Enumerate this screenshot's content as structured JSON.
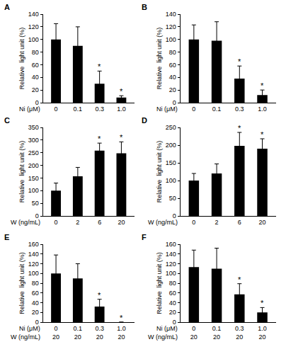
{
  "chart_data": [
    {
      "type": "bar",
      "panel": "A",
      "y_label": "Relative  light unit (%)",
      "x_label": "Ni (μM)",
      "categories": [
        "0",
        "0.1",
        "0.3",
        "1.0"
      ],
      "values": [
        100,
        90,
        30,
        8
      ],
      "errors": [
        25,
        30,
        20,
        3
      ],
      "color": "#000000",
      "ylim": [
        0,
        140
      ],
      "yticks": [
        0,
        20,
        40,
        60,
        80,
        100,
        120,
        140
      ],
      "annotations": [
        {
          "index": 2,
          "text": "*"
        },
        {
          "index": 3,
          "text": "*"
        }
      ]
    },
    {
      "type": "bar",
      "panel": "B",
      "y_label": "Relative  light unit (%)",
      "x_label": "Ni (μM)",
      "categories": [
        "0",
        "0.1",
        "0.3",
        "1.0"
      ],
      "values": [
        100,
        98,
        38,
        12
      ],
      "errors": [
        23,
        30,
        20,
        8
      ],
      "color": "#000000",
      "ylim": [
        0,
        140
      ],
      "yticks": [
        0,
        20,
        40,
        60,
        80,
        100,
        120,
        140
      ],
      "annotations": [
        {
          "index": 2,
          "text": "*"
        },
        {
          "index": 3,
          "text": "*"
        }
      ]
    },
    {
      "type": "bar",
      "panel": "C",
      "y_label": "Relative  light unit (%)",
      "x_label": "W (ng/mL)",
      "categories": [
        "0",
        "2",
        "6",
        "20"
      ],
      "values": [
        100,
        157,
        258,
        248
      ],
      "errors": [
        30,
        35,
        30,
        45
      ],
      "color": "#000000",
      "ylim": [
        0,
        350
      ],
      "yticks": [
        0,
        50,
        100,
        150,
        200,
        250,
        300,
        350
      ],
      "annotations": [
        {
          "index": 2,
          "text": "*"
        },
        {
          "index": 3,
          "text": "*"
        }
      ]
    },
    {
      "type": "bar",
      "panel": "D",
      "y_label": "Relative  light unit (%)",
      "x_label": "W (ng/mL)",
      "categories": [
        "0",
        "2",
        "6",
        "20"
      ],
      "values": [
        100,
        120,
        198,
        190
      ],
      "errors": [
        20,
        27,
        38,
        28
      ],
      "color": "#000000",
      "ylim": [
        0,
        250
      ],
      "yticks": [
        0,
        50,
        100,
        150,
        200,
        250
      ],
      "annotations": [
        {
          "index": 2,
          "text": "*"
        },
        {
          "index": 3,
          "text": "*"
        }
      ]
    },
    {
      "type": "bar",
      "panel": "E",
      "y_label": "Relative  light unit (%)",
      "x_label": "Ni (μM)",
      "x_label2": "W (ng/mL)",
      "categories": [
        "0",
        "0.1",
        "0.3",
        "1.0"
      ],
      "categories2": [
        "20",
        "20",
        "20",
        "20"
      ],
      "values": [
        100,
        90,
        32,
        0
      ],
      "errors": [
        38,
        30,
        15,
        0
      ],
      "color": "#000000",
      "ylim": [
        0,
        160
      ],
      "yticks": [
        0,
        20,
        40,
        60,
        80,
        100,
        120,
        140,
        160
      ],
      "annotations": [
        {
          "index": 2,
          "text": "*"
        },
        {
          "index": 3,
          "text": "*"
        }
      ]
    },
    {
      "type": "bar",
      "panel": "F",
      "y_label": "Relative  light unit (%)",
      "x_label": "Ni (μM)",
      "x_label2": "W (ng/mL)",
      "categories": [
        "0",
        "0.1",
        "0.3",
        "1.0"
      ],
      "categories2": [
        "20",
        "20",
        "20",
        "20"
      ],
      "values": [
        113,
        110,
        57,
        20
      ],
      "errors": [
        35,
        42,
        22,
        10
      ],
      "color": "#000000",
      "ylim": [
        0,
        160
      ],
      "yticks": [
        0,
        20,
        40,
        60,
        80,
        100,
        120,
        140,
        160
      ],
      "annotations": [
        {
          "index": 2,
          "text": "*"
        },
        {
          "index": 3,
          "text": "*"
        }
      ]
    }
  ]
}
